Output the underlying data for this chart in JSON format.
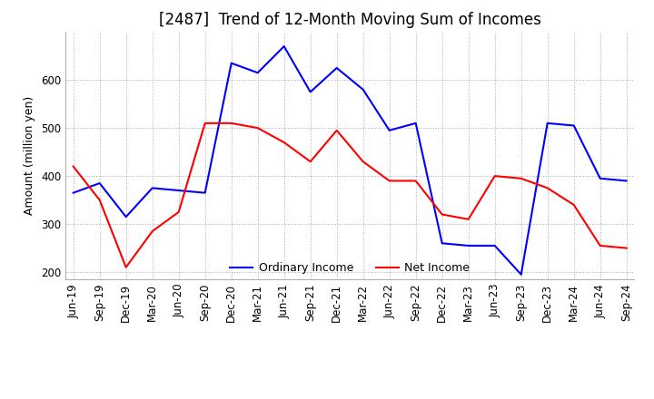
{
  "title": "[2487]  Trend of 12-Month Moving Sum of Incomes",
  "ylabel": "Amount (million yen)",
  "ylim": [
    185,
    700
  ],
  "yticks": [
    200,
    300,
    400,
    500,
    600
  ],
  "x_labels": [
    "Jun-19",
    "Sep-19",
    "Dec-19",
    "Mar-20",
    "Jun-20",
    "Sep-20",
    "Dec-20",
    "Mar-21",
    "Jun-21",
    "Sep-21",
    "Dec-21",
    "Mar-22",
    "Jun-22",
    "Sep-22",
    "Dec-22",
    "Mar-23",
    "Jun-23",
    "Sep-23",
    "Dec-23",
    "Mar-24",
    "Jun-24",
    "Sep-24"
  ],
  "ordinary_income": [
    365,
    385,
    315,
    375,
    370,
    365,
    635,
    615,
    670,
    575,
    625,
    580,
    495,
    510,
    260,
    255,
    255,
    195,
    510,
    505,
    395,
    390
  ],
  "net_income": [
    420,
    350,
    210,
    285,
    325,
    510,
    510,
    500,
    470,
    430,
    495,
    430,
    390,
    390,
    320,
    310,
    400,
    395,
    375,
    340,
    255,
    250
  ],
  "ordinary_color": "#0000ff",
  "net_color": "#ff0000",
  "background_color": "#ffffff",
  "grid_color": "#aaaaaa",
  "title_fontsize": 12,
  "label_fontsize": 9,
  "tick_fontsize": 8.5
}
